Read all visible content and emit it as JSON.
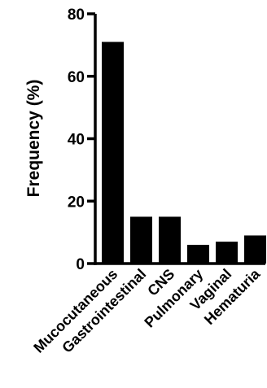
{
  "chart_data": {
    "type": "bar",
    "title": "",
    "xlabel": "",
    "ylabel": "Frequency (%)",
    "ylim": [
      0,
      80
    ],
    "yticks": [
      0,
      20,
      40,
      60,
      80
    ],
    "grid": false,
    "bar_color": "#000000",
    "categories": [
      "Mucocutaneous",
      "Gastrointestinal",
      "CNS",
      "Pulmonary",
      "Vaginal",
      "Hematuria"
    ],
    "values": [
      71,
      15,
      15,
      6,
      7,
      9
    ]
  }
}
